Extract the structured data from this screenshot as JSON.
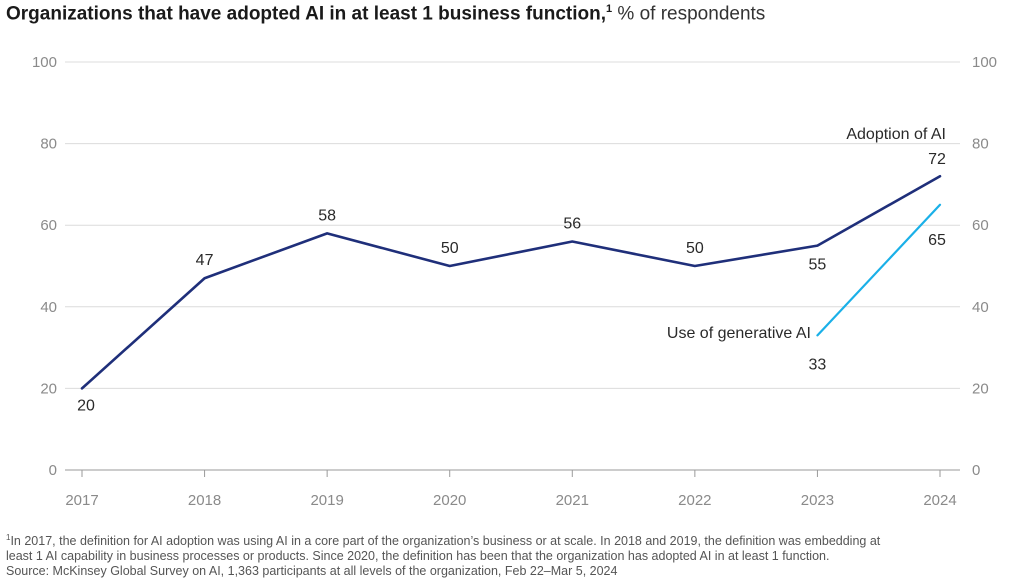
{
  "chart_data": {
    "type": "line",
    "title": "Organizations that have adopted AI in at least 1 business function,",
    "title_footnote_marker": "1",
    "subtitle": "% of respondents",
    "x": [
      "2017",
      "2018",
      "2019",
      "2020",
      "2021",
      "2022",
      "2023",
      "2024"
    ],
    "ylim": [
      0,
      100
    ],
    "yticks": [
      "0",
      "20",
      "40",
      "60",
      "80",
      "100"
    ],
    "grid": true,
    "series": [
      {
        "name": "Adoption of AI",
        "color": "#1f2f7a",
        "x": [
          "2017",
          "2018",
          "2019",
          "2020",
          "2021",
          "2022",
          "2023",
          "2024"
        ],
        "values": [
          20,
          47,
          58,
          50,
          56,
          50,
          55,
          72
        ]
      },
      {
        "name": "Use of generative AI",
        "color": "#1ab0e8",
        "x": [
          "2023",
          "2024"
        ],
        "values": [
          33,
          65
        ]
      }
    ]
  },
  "footnotes": {
    "marker": "1",
    "line1": "In 2017, the definition for AI adoption was using AI in a core part of the organization’s business or at scale. In 2018 and 2019, the definition was embedding at",
    "line2": "least 1 AI capability in business processes or products. Since 2020, the definition has been that the organization has adopted AI in at least 1 function.",
    "source": "Source: McKinsey Global Survey on AI, 1,363 participants at all levels of the organization, Feb 22–Mar 5, 2024"
  }
}
